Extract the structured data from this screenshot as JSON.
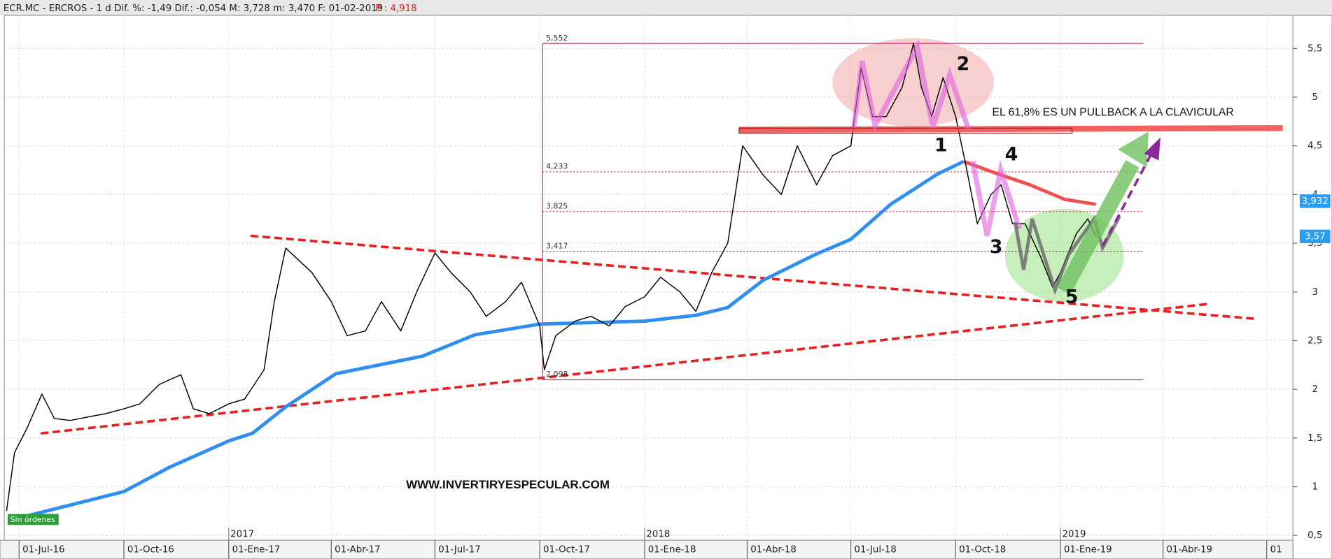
{
  "chart_data": {
    "type": "line",
    "title": "ECR.MC - ERCROS -  1 d Dif. %: -1,49 Dif.: -0,054 M: 3,728 m: 3,470 F: 01-02-2019",
    "last_price": "P : 4,918",
    "xlim": [
      "2016-06-18",
      "2019-07-24"
    ],
    "ylim": [
      0.45,
      5.84
    ],
    "grid": true,
    "yticks": [
      {
        "value": 0.5,
        "label": "0,5"
      },
      1,
      {
        "value": 1.5,
        "label": "1,5"
      },
      2,
      {
        "value": 2.5,
        "label": "2,5"
      },
      3,
      {
        "value": 3.5,
        "label": "3,5"
      },
      4,
      {
        "value": 4.5,
        "label": "4,5"
      },
      5,
      {
        "value": 5.5,
        "label": "5,5"
      }
    ],
    "xticks": [
      {
        "value": "2016-07-01",
        "label": "01-Jul-16"
      },
      {
        "value": "2016-10-01",
        "label": "01-Oct-16"
      },
      {
        "value": "2017-01-01",
        "label": "01-Ene-17"
      },
      {
        "value": "2017-04-01",
        "label": "01-Abr-17"
      },
      {
        "value": "2017-07-01",
        "label": "01-Jul-17"
      },
      {
        "value": "2017-10-01",
        "label": "01-Oct-17"
      },
      {
        "value": "2018-01-01",
        "label": "01-Ene-18"
      },
      {
        "value": "2018-04-01",
        "label": "01-Abr-18"
      },
      {
        "value": "2018-07-01",
        "label": "01-Jul-18"
      },
      {
        "value": "2018-10-01",
        "label": "01-Oct-18"
      },
      {
        "value": "2019-01-01",
        "label": "01-Ene-19"
      },
      {
        "value": "2019-04-01",
        "label": "01-Abr-19"
      },
      {
        "value": "2019-07-01",
        "label": "01"
      }
    ],
    "year_ticks": [
      {
        "value": "2017-01-01",
        "label": "2017"
      },
      {
        "value": "2018-01-01",
        "label": "2018"
      },
      {
        "value": "2019-01-01",
        "label": "2019"
      }
    ],
    "series": [
      {
        "color": "#2f8ff0",
        "width": 4,
        "x": [
          "2016-06-22",
          "2016-07-01",
          "2016-10-01",
          "2016-11-10",
          "2017-01-01",
          "2017-01-22",
          "2017-02-20",
          "2017-04-05",
          "2017-06-20",
          "2017-08-05",
          "2017-10-01",
          "2018-01-01",
          "2018-02-15",
          "2018-03-15",
          "2018-04-15",
          "2018-05-30",
          "2018-07-01",
          "2018-08-05",
          "2018-09-15",
          "2018-10-08"
        ],
        "values": [
          0.62,
          0.68,
          0.95,
          1.2,
          1.47,
          1.55,
          1.82,
          2.16,
          2.34,
          2.56,
          2.67,
          2.7,
          2.76,
          2.84,
          3.12,
          3.38,
          3.54,
          3.9,
          4.21,
          4.34
        ]
      },
      {
        "color": "#f05050",
        "width": 4,
        "x": [
          "2018-10-08",
          "2018-11-05",
          "2018-12-05",
          "2019-01-05",
          "2019-02-01"
        ],
        "values": [
          4.34,
          4.22,
          4.1,
          3.95,
          3.9
        ]
      },
      {
        "color": "#000000",
        "width": 1.2,
        "x": [
          "2016-06-20",
          "2016-06-27",
          "2016-07-08",
          "2016-07-21",
          "2016-08-01",
          "2016-08-15",
          "2016-09-01",
          "2016-09-15",
          "2016-10-01",
          "2016-10-15",
          "2016-11-01",
          "2016-11-20",
          "2016-12-01",
          "2016-12-15",
          "2017-01-01",
          "2017-01-15",
          "2017-02-01",
          "2017-02-10",
          "2017-02-20",
          "2017-03-15",
          "2017-04-01",
          "2017-04-15",
          "2017-05-01",
          "2017-05-15",
          "2017-06-01",
          "2017-06-15",
          "2017-07-01",
          "2017-07-15",
          "2017-08-01",
          "2017-08-15",
          "2017-09-01",
          "2017-09-15",
          "2017-10-01",
          "2017-10-05",
          "2017-10-15",
          "2017-11-01",
          "2017-11-15",
          "2017-12-01",
          "2017-12-15",
          "2018-01-01",
          "2018-01-15",
          "2018-02-01",
          "2018-02-15",
          "2018-03-01",
          "2018-03-15",
          "2018-03-28",
          "2018-04-15",
          "2018-05-01",
          "2018-05-15",
          "2018-06-01",
          "2018-06-15",
          "2018-07-01",
          "2018-07-10",
          "2018-07-20",
          "2018-08-01",
          "2018-08-15",
          "2018-08-25",
          "2018-09-01",
          "2018-09-10",
          "2018-09-20",
          "2018-10-01",
          "2018-10-10",
          "2018-10-20",
          "2018-11-01",
          "2018-11-10",
          "2018-11-20",
          "2018-12-01",
          "2018-12-15",
          "2018-12-25",
          "2019-01-01",
          "2019-01-15",
          "2019-01-25",
          "2019-02-01"
        ],
        "values": [
          0.75,
          1.35,
          1.6,
          1.95,
          1.7,
          1.68,
          1.72,
          1.75,
          1.8,
          1.85,
          2.05,
          2.15,
          1.8,
          1.75,
          1.85,
          1.9,
          2.2,
          2.9,
          3.45,
          3.2,
          2.9,
          2.55,
          2.6,
          2.9,
          2.6,
          3.0,
          3.4,
          3.2,
          3.0,
          2.75,
          2.9,
          3.1,
          2.65,
          2.2,
          2.55,
          2.7,
          2.75,
          2.65,
          2.85,
          2.95,
          3.15,
          3.0,
          2.8,
          3.2,
          3.5,
          4.5,
          4.2,
          4.0,
          4.5,
          4.1,
          4.4,
          4.5,
          5.3,
          4.8,
          4.8,
          5.1,
          5.55,
          5.1,
          4.8,
          5.2,
          4.8,
          4.3,
          3.7,
          4.0,
          4.1,
          3.7,
          3.7,
          3.35,
          3.05,
          3.2,
          3.6,
          3.75,
          3.57
        ]
      }
    ],
    "fib_levels": {
      "values": [
        5.552,
        4.233,
        3.825,
        3.417,
        2.098
      ],
      "value_labels": [
        "5,552",
        "4,233",
        "3,825",
        "3,417",
        "2,098"
      ]
    },
    "price_tags": [
      {
        "value": 3.932,
        "label": "3,932"
      },
      {
        "value": 3.57,
        "label": "3,57"
      }
    ]
  },
  "annotations": {
    "note": "EL  61,8% ES UN PULLBACK A LA CLAVICULAR",
    "website": "WWW.INVERTIRYESPECULAR.COM",
    "status": "Sin órdenes",
    "wave_labels": [
      "1",
      "2",
      "3",
      "4",
      "5"
    ]
  }
}
